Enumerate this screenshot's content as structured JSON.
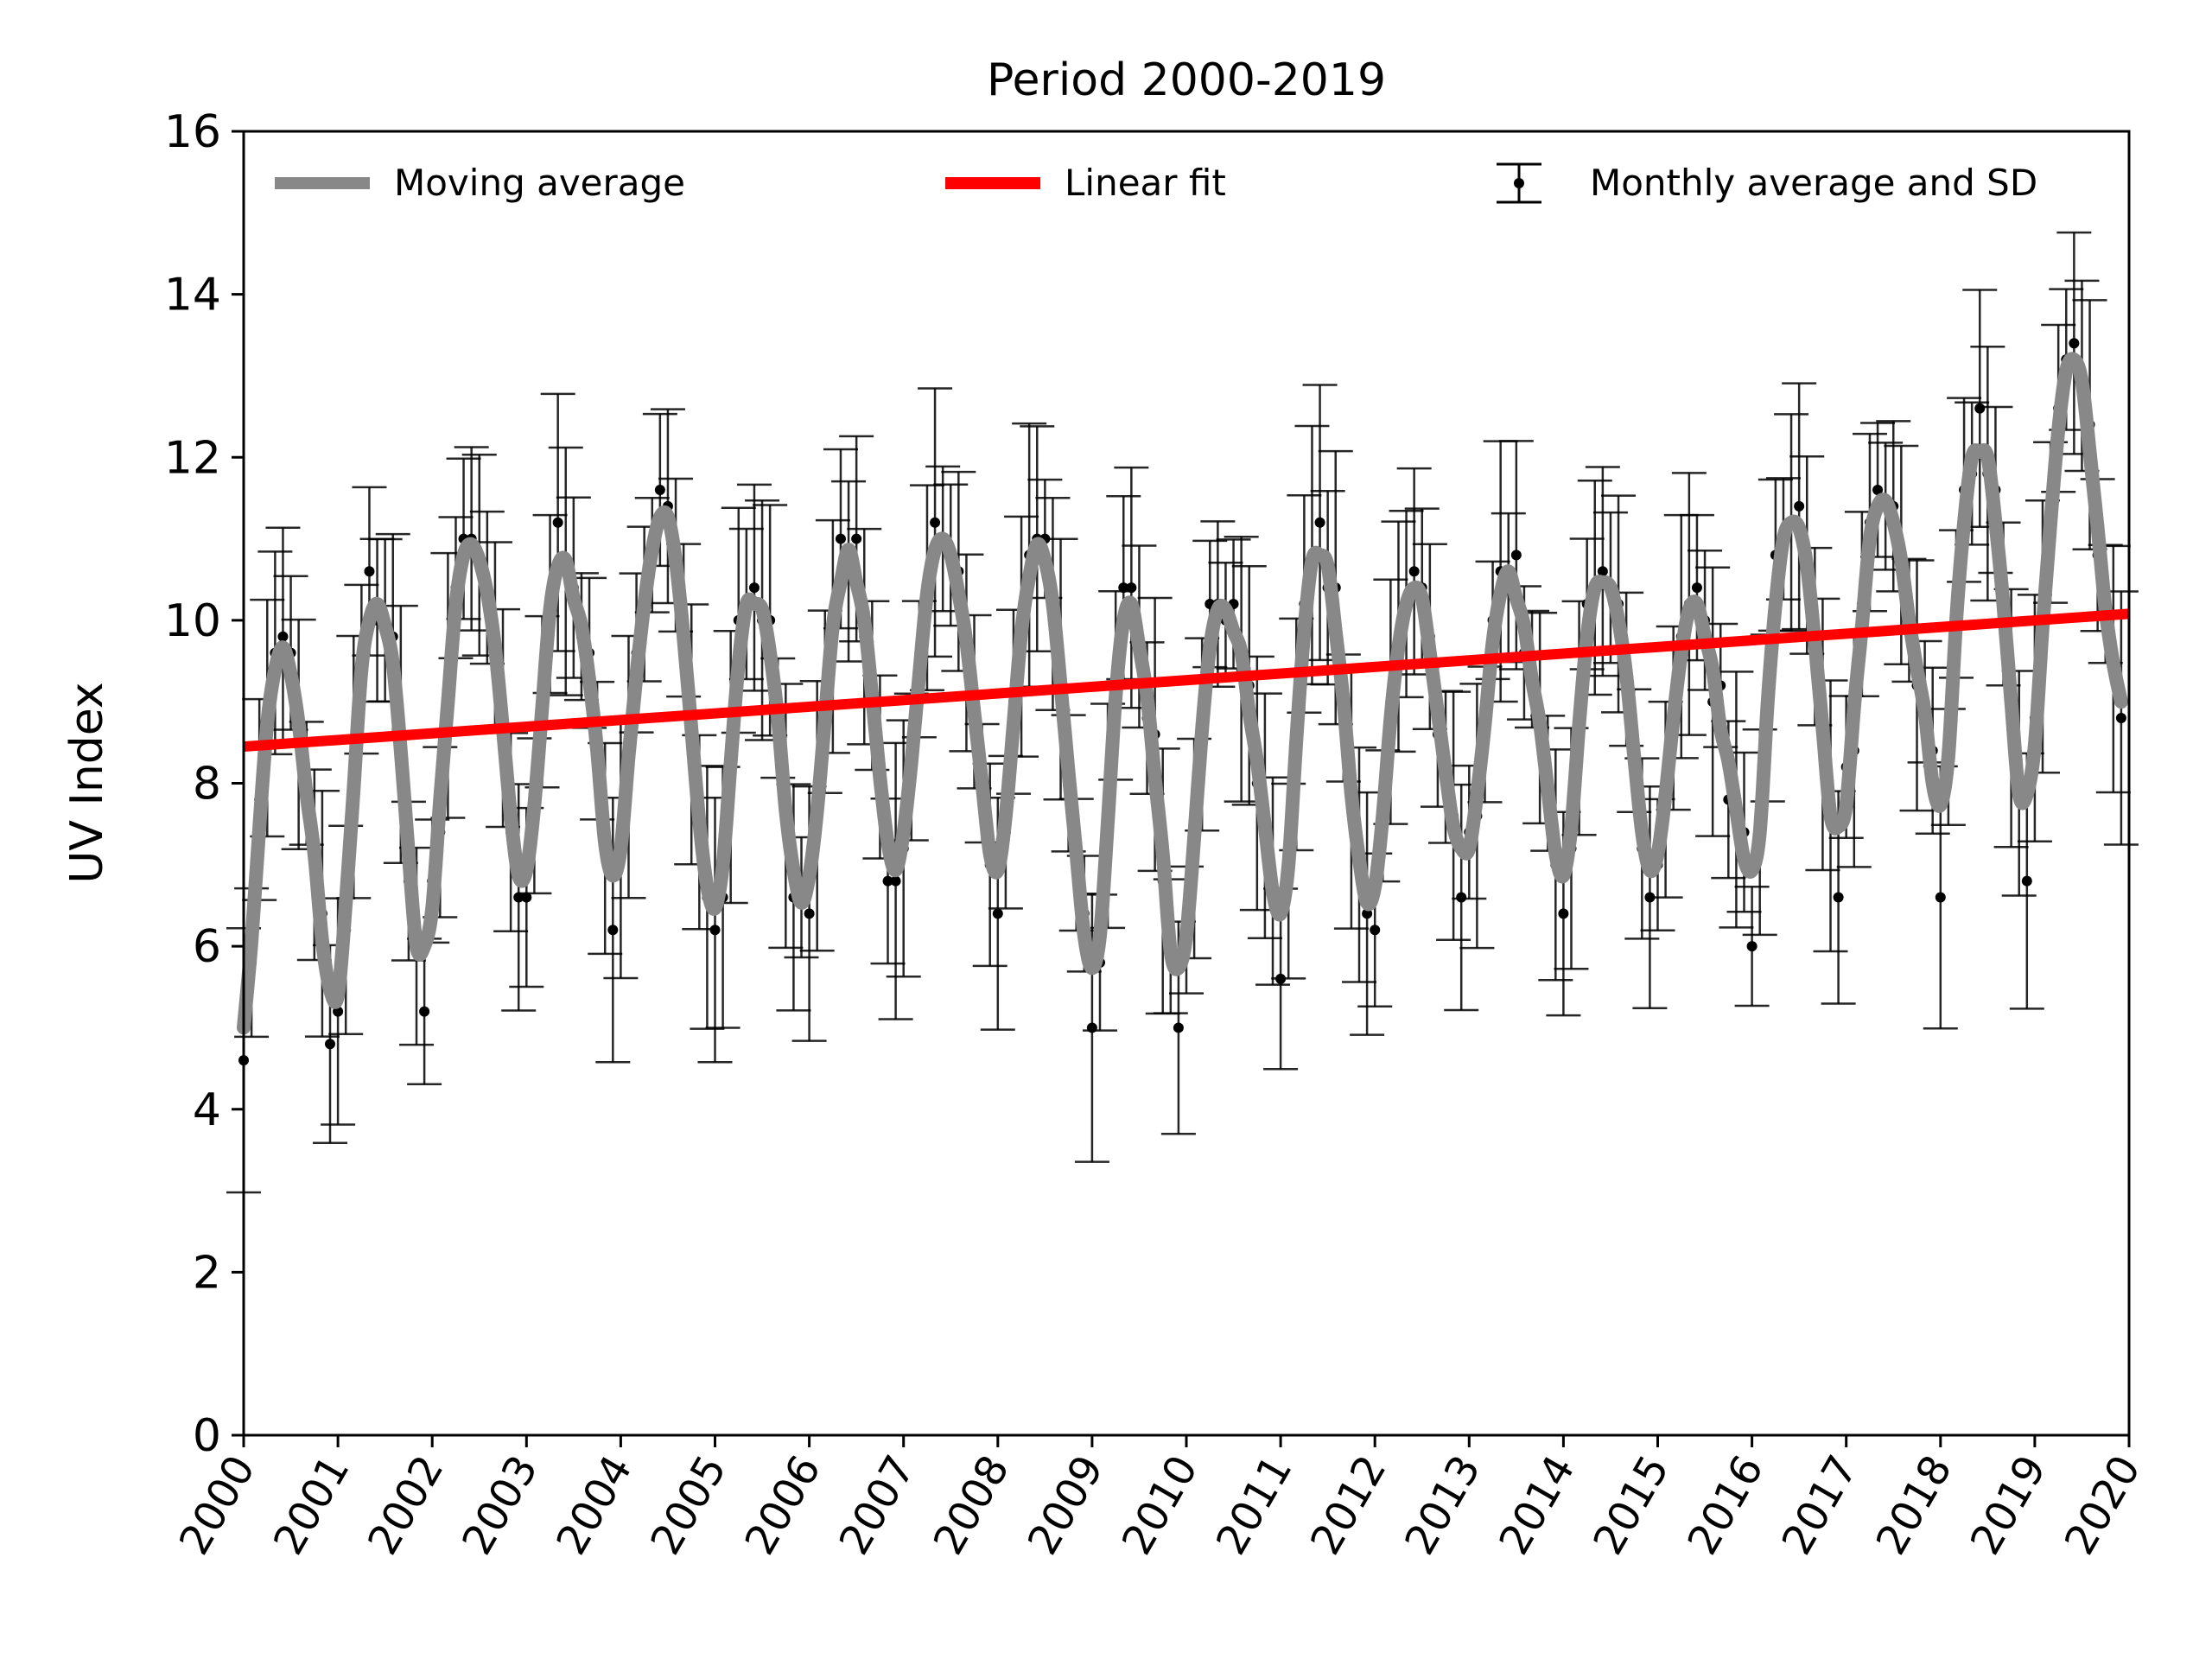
{
  "chart_data": {
    "type": "line",
    "title": "Period 2000-2019",
    "xlabel": "",
    "ylabel": "UV Index",
    "xlim": [
      2000,
      2020
    ],
    "ylim": [
      0,
      16
    ],
    "xticks": [
      "2000",
      "2001",
      "2002",
      "2003",
      "2004",
      "2005",
      "2006",
      "2007",
      "2008",
      "2009",
      "2010",
      "2011",
      "2012",
      "2013",
      "2014",
      "2015",
      "2016",
      "2017",
      "2018",
      "2019",
      "2020"
    ],
    "yticks": [
      "0",
      "2",
      "4",
      "6",
      "8",
      "10",
      "12",
      "14",
      "16"
    ],
    "grid": false,
    "legend_position": "top",
    "legend": {
      "moving_average": "Moving average",
      "linear_fit": "Linear fit",
      "monthly": "Monthly average and SD"
    },
    "colors": {
      "moving_average": "#888888",
      "linear_fit": "#ff0000",
      "monthly": "#000000"
    },
    "linear_fit": {
      "x": [
        2000,
        2020
      ],
      "y": [
        8.45,
        10.08
      ]
    },
    "monthly_annual_min": [
      5.0,
      4.9,
      6.4,
      6.3,
      6.8,
      6.0,
      6.1,
      7.0,
      6.6,
      5.0,
      6.5,
      5.8,
      6.5,
      7.0,
      6.0,
      6.8,
      6.2,
      8.0,
      6.6,
      8.5
    ],
    "monthly_annual_max": [
      9.6,
      10.4,
      11.2,
      11.0,
      11.4,
      10.6,
      10.8,
      11.1,
      10.7,
      10.2,
      10.4,
      10.8,
      10.2,
      10.6,
      10.9,
      10.0,
      11.6,
      11.8,
      12.4,
      13.0
    ],
    "monthly_sd_range": [
      0.7,
      1.7
    ]
  }
}
